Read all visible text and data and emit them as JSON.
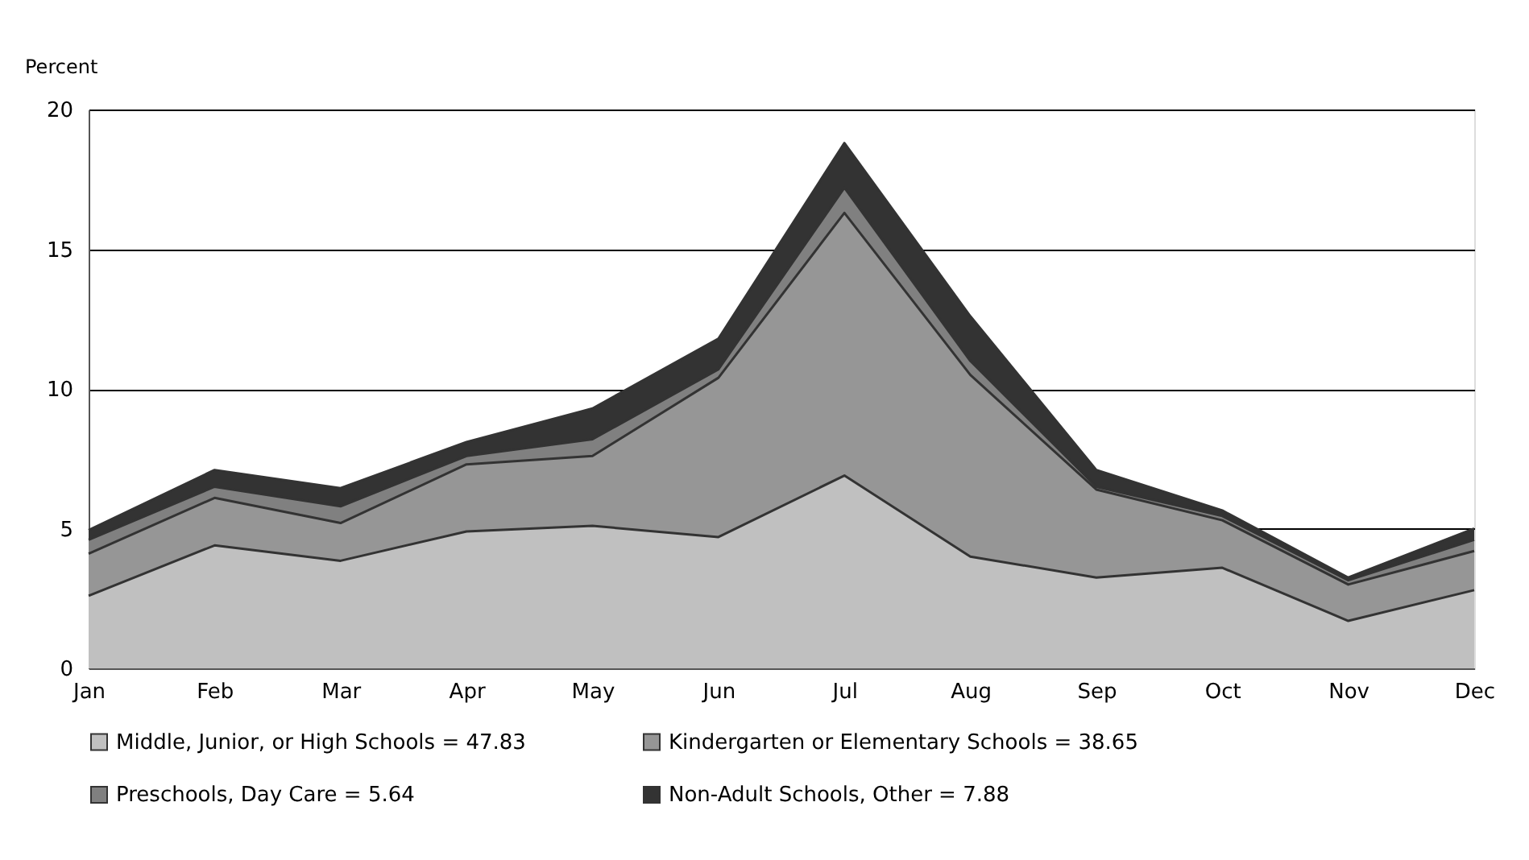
{
  "chart_data": {
    "type": "area",
    "stacked": true,
    "ylabel": "Percent",
    "categories": [
      "Jan",
      "Feb",
      "Mar",
      "Apr",
      "May",
      "Jun",
      "Jul",
      "Aug",
      "Sep",
      "Oct",
      "Nov",
      "Dec"
    ],
    "series": [
      {
        "name": "Middle, Junior, or High Schools = 47.83",
        "color": "#c0c0c0",
        "values": [
          2.6,
          4.4,
          3.85,
          4.9,
          5.1,
          4.7,
          6.9,
          4.0,
          3.25,
          3.6,
          1.7,
          2.8
        ]
      },
      {
        "name": "Kindergarten or Elementary Schools = 38.65",
        "color": "#969696",
        "values": [
          1.5,
          1.7,
          1.35,
          2.4,
          2.5,
          5.7,
          9.4,
          6.5,
          3.15,
          1.7,
          1.3,
          1.4
        ]
      },
      {
        "name": "Preschools, Day Care = 5.64",
        "color": "#808080",
        "values": [
          0.5,
          0.4,
          0.6,
          0.3,
          0.6,
          0.3,
          0.9,
          0.5,
          0.1,
          0.15,
          0.15,
          0.4
        ]
      },
      {
        "name": "Non-Adult Schools, Other = 7.88",
        "color": "#333333",
        "values": [
          0.35,
          0.6,
          0.65,
          0.5,
          1.1,
          1.1,
          1.6,
          1.6,
          0.6,
          0.2,
          0.1,
          0.4
        ]
      }
    ],
    "ylim": [
      0,
      20
    ],
    "yticks": [
      0,
      5,
      10,
      15,
      20
    ],
    "grid": "y",
    "legend": "bottom"
  }
}
